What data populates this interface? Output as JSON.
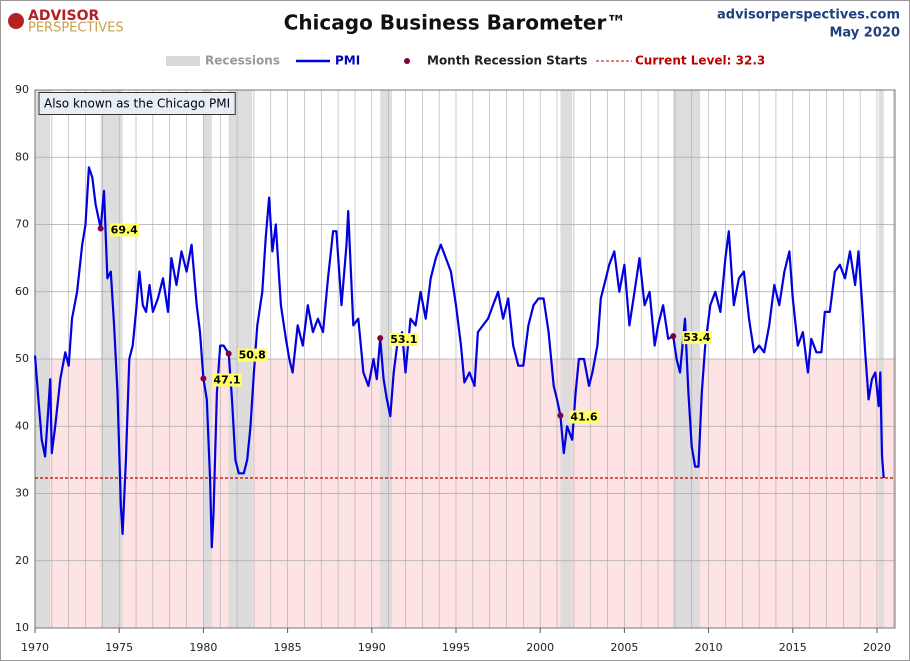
{
  "chart_data": {
    "type": "line",
    "title": "Chicago Business Barometer™",
    "logo": [
      "ADVISOR",
      "PERSPECTIVES"
    ],
    "source": "advisorperspectives.com",
    "date": "May 2020",
    "annotation": "Also known as the Chicago PMI",
    "xlim": [
      1970,
      2021.07
    ],
    "xticks": [
      1970,
      1975,
      1980,
      1985,
      1990,
      1995,
      2000,
      2005,
      2010,
      2015,
      2020
    ],
    "ylim": [
      10,
      90
    ],
    "yticks": [
      10,
      20,
      30,
      40,
      50,
      60,
      70,
      80,
      90
    ],
    "grid": true,
    "shade_below": 50,
    "shade_color": "#fde3e3",
    "recessions": {
      "name": "Recessions",
      "color": "#d9d9d9",
      "spans": [
        [
          1970.0,
          1970.9
        ],
        [
          1973.9,
          1975.2
        ],
        [
          1980.0,
          1980.5
        ],
        [
          1981.5,
          1982.9
        ],
        [
          1990.5,
          1991.2
        ],
        [
          2001.2,
          2001.9
        ],
        [
          2007.9,
          2009.5
        ],
        [
          2020.1,
          2020.4
        ]
      ]
    },
    "current_level": {
      "label": "Current Level: 32.3",
      "value": 32.3,
      "color": "#c00000"
    },
    "series": [
      {
        "name": "PMI",
        "color": "#0000e0",
        "x": [
          1970.0,
          1970.2,
          1970.4,
          1970.6,
          1970.8,
          1970.9,
          1971.0,
          1971.2,
          1971.5,
          1971.8,
          1972.0,
          1972.2,
          1972.5,
          1972.8,
          1973.0,
          1973.2,
          1973.4,
          1973.6,
          1973.9,
          1974.1,
          1974.3,
          1974.5,
          1974.7,
          1974.9,
          1975.1,
          1975.2,
          1975.4,
          1975.6,
          1975.8,
          1976.0,
          1976.2,
          1976.4,
          1976.6,
          1976.8,
          1977.0,
          1977.3,
          1977.6,
          1977.9,
          1978.1,
          1978.4,
          1978.7,
          1979.0,
          1979.3,
          1979.6,
          1979.8,
          1980.0,
          1980.2,
          1980.4,
          1980.5,
          1980.6,
          1980.8,
          1981.0,
          1981.2,
          1981.5,
          1981.7,
          1981.9,
          1982.1,
          1982.4,
          1982.6,
          1982.8,
          1983.0,
          1983.2,
          1983.5,
          1983.7,
          1983.9,
          1984.1,
          1984.3,
          1984.6,
          1984.9,
          1985.1,
          1985.3,
          1985.6,
          1985.9,
          1986.2,
          1986.5,
          1986.8,
          1987.1,
          1987.4,
          1987.7,
          1987.9,
          1988.2,
          1988.5,
          1988.6,
          1988.9,
          1989.2,
          1989.5,
          1989.8,
          1990.1,
          1990.3,
          1990.5,
          1990.7,
          1990.9,
          1991.1,
          1991.3,
          1991.5,
          1991.8,
          1992.0,
          1992.3,
          1992.6,
          1992.9,
          1993.2,
          1993.5,
          1993.8,
          1994.1,
          1994.4,
          1994.7,
          1995.0,
          1995.3,
          1995.5,
          1995.8,
          1996.1,
          1996.3,
          1996.6,
          1996.9,
          1997.2,
          1997.5,
          1997.8,
          1998.1,
          1998.4,
          1998.7,
          1999.0,
          1999.3,
          1999.6,
          1999.9,
          2000.2,
          2000.5,
          2000.8,
          2001.0,
          2001.2,
          2001.4,
          2001.6,
          2001.9,
          2002.1,
          2002.3,
          2002.6,
          2002.9,
          2003.1,
          2003.4,
          2003.6,
          2003.9,
          2004.1,
          2004.4,
          2004.7,
          2005.0,
          2005.3,
          2005.6,
          2005.9,
          2006.2,
          2006.5,
          2006.8,
          2007.0,
          2007.3,
          2007.6,
          2007.9,
          2008.1,
          2008.3,
          2008.6,
          2008.8,
          2009.0,
          2009.2,
          2009.4,
          2009.6,
          2009.8,
          2010.1,
          2010.4,
          2010.7,
          2011.0,
          2011.2,
          2011.5,
          2011.8,
          2012.1,
          2012.4,
          2012.7,
          2013.0,
          2013.3,
          2013.6,
          2013.9,
          2014.2,
          2014.5,
          2014.8,
          2015.0,
          2015.3,
          2015.6,
          2015.9,
          2016.1,
          2016.4,
          2016.7,
          2016.9,
          2017.2,
          2017.5,
          2017.8,
          2018.1,
          2018.4,
          2018.7,
          2018.9,
          2019.1,
          2019.3,
          2019.5,
          2019.7,
          2019.9,
          2020.1,
          2020.2,
          2020.3,
          2020.4
        ],
        "values": [
          50.5,
          44,
          38,
          35.5,
          43,
          47,
          36,
          40,
          47,
          51,
          49,
          56,
          60,
          67,
          70,
          78.5,
          77,
          73,
          69.4,
          75,
          62,
          63,
          55,
          45,
          28,
          24,
          35,
          50,
          52,
          57,
          63,
          58,
          57,
          61,
          57,
          59,
          62,
          57,
          65,
          61,
          66,
          63,
          67,
          58,
          54,
          47.1,
          44,
          32,
          22,
          27,
          45,
          52,
          52,
          50.8,
          44,
          35,
          33,
          33,
          35,
          40,
          48,
          55,
          60,
          68,
          74,
          66,
          70,
          58,
          53,
          50,
          48,
          55,
          52,
          58,
          54,
          56,
          54,
          62,
          69,
          69,
          58,
          67,
          72,
          55,
          56,
          48,
          46,
          50,
          47,
          53.1,
          47,
          44,
          41.5,
          48,
          52,
          54,
          48,
          56,
          55,
          60,
          56,
          62,
          65,
          67,
          65,
          63,
          58,
          52,
          46.5,
          48,
          46,
          54,
          55,
          56,
          58,
          60,
          56,
          59,
          52,
          49,
          49,
          55,
          58,
          59,
          59,
          54,
          46,
          44,
          41.6,
          36,
          40,
          38,
          45,
          50,
          50,
          46,
          48,
          52,
          59,
          62,
          64,
          66,
          60,
          64,
          55,
          60,
          65,
          58,
          60,
          52,
          55,
          58,
          53,
          53.4,
          50,
          48,
          56,
          45,
          37,
          34,
          34,
          45,
          52,
          58,
          60,
          57,
          65,
          69,
          58,
          62,
          63,
          56,
          51,
          52,
          51,
          55,
          61,
          58,
          63,
          66,
          59,
          52,
          54,
          48,
          53,
          51,
          51,
          57,
          57,
          63,
          64,
          62,
          66,
          61,
          66,
          59,
          51,
          44,
          47,
          48,
          43,
          48,
          35.6,
          32.3
        ]
      },
      {
        "name": "Month Recession Starts",
        "color": "#800040",
        "x": [
          1973.9,
          1980.0,
          1981.5,
          1990.5,
          2001.2,
          2007.9
        ],
        "values": [
          69.4,
          47.1,
          50.8,
          53.1,
          41.6,
          53.4
        ]
      }
    ]
  }
}
